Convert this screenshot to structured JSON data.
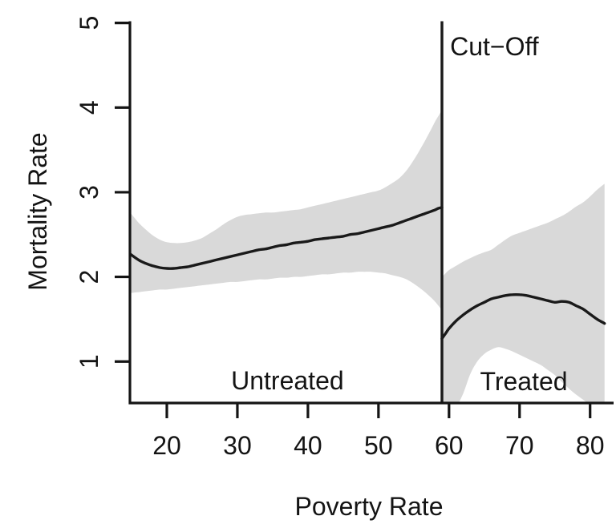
{
  "chart_data": {
    "type": "line",
    "title": "",
    "xlabel": "Poverty Rate",
    "ylabel": "Mortality Rate",
    "xlim": [
      14.77,
      83.33
    ],
    "ylim": [
      0.51,
      5.02
    ],
    "x_ticks": [
      20,
      30,
      40,
      50,
      60,
      70,
      80
    ],
    "y_ticks": [
      1,
      2,
      3,
      4,
      5
    ],
    "grid": false,
    "legend": "none",
    "band_color": "#d9d9d9",
    "line_color": "#1a1a1a",
    "axis_color": "#141414",
    "cutoff": {
      "x": 59,
      "label": "Cut−Off",
      "label_pos": {
        "x": 60.15,
        "y": 4.62
      }
    },
    "region_labels": [
      {
        "text": "Untreated",
        "x": 37.1,
        "y": 0.67
      },
      {
        "text": "Treated",
        "x": 70.6,
        "y": 0.66
      }
    ],
    "series": [
      {
        "name": "Untreated",
        "x": [
          14.8,
          16,
          17,
          18,
          19,
          20,
          21,
          22,
          23,
          24,
          25,
          26,
          27,
          28,
          29,
          30,
          31,
          32,
          33,
          34,
          35,
          36,
          37,
          38,
          39,
          40,
          41,
          42,
          43,
          44,
          45,
          46,
          47,
          48,
          49,
          50,
          51,
          52,
          53,
          54,
          55,
          56,
          57,
          58,
          58.5,
          59
        ],
        "y": [
          2.27,
          2.2,
          2.16,
          2.13,
          2.11,
          2.1,
          2.1,
          2.11,
          2.12,
          2.14,
          2.16,
          2.18,
          2.2,
          2.22,
          2.24,
          2.26,
          2.28,
          2.3,
          2.32,
          2.33,
          2.35,
          2.37,
          2.38,
          2.4,
          2.41,
          2.42,
          2.44,
          2.45,
          2.46,
          2.47,
          2.48,
          2.5,
          2.51,
          2.53,
          2.55,
          2.57,
          2.59,
          2.61,
          2.64,
          2.67,
          2.7,
          2.73,
          2.76,
          2.79,
          2.81,
          2.82
        ],
        "upper": [
          2.76,
          2.64,
          2.56,
          2.49,
          2.44,
          2.41,
          2.4,
          2.4,
          2.41,
          2.43,
          2.46,
          2.51,
          2.56,
          2.62,
          2.67,
          2.71,
          2.73,
          2.74,
          2.75,
          2.76,
          2.76,
          2.77,
          2.78,
          2.79,
          2.8,
          2.82,
          2.84,
          2.86,
          2.88,
          2.9,
          2.92,
          2.94,
          2.96,
          2.98,
          3.0,
          3.02,
          3.06,
          3.11,
          3.17,
          3.26,
          3.38,
          3.52,
          3.67,
          3.83,
          3.9,
          3.97
        ],
        "lower": [
          1.81,
          1.82,
          1.83,
          1.84,
          1.85,
          1.85,
          1.86,
          1.87,
          1.88,
          1.89,
          1.9,
          1.91,
          1.92,
          1.93,
          1.94,
          1.94,
          1.95,
          1.96,
          1.97,
          1.97,
          1.98,
          1.99,
          1.99,
          2.0,
          2.0,
          2.01,
          2.02,
          2.03,
          2.03,
          2.04,
          2.05,
          2.05,
          2.06,
          2.06,
          2.06,
          2.05,
          2.04,
          2.02,
          2.0,
          1.97,
          1.92,
          1.86,
          1.79,
          1.71,
          1.66,
          1.61
        ]
      },
      {
        "name": "Treated",
        "x": [
          59,
          59.5,
          60,
          61,
          62,
          63,
          64,
          65,
          66,
          67,
          68,
          69,
          70,
          71,
          72,
          73,
          74,
          75,
          76,
          77,
          78,
          79,
          80,
          81,
          82.05
        ],
        "y": [
          1.27,
          1.33,
          1.39,
          1.48,
          1.55,
          1.61,
          1.66,
          1.7,
          1.74,
          1.76,
          1.78,
          1.79,
          1.79,
          1.78,
          1.76,
          1.74,
          1.72,
          1.7,
          1.71,
          1.7,
          1.66,
          1.62,
          1.56,
          1.5,
          1.45
        ],
        "upper": [
          2.0,
          2.04,
          2.08,
          2.13,
          2.18,
          2.22,
          2.26,
          2.29,
          2.32,
          2.38,
          2.44,
          2.49,
          2.52,
          2.55,
          2.58,
          2.61,
          2.64,
          2.68,
          2.72,
          2.77,
          2.83,
          2.88,
          2.95,
          3.03,
          3.1
        ],
        "lower": [
          0.3,
          0.33,
          0.37,
          0.46,
          0.62,
          0.85,
          1.0,
          1.09,
          1.14,
          1.17,
          1.15,
          1.12,
          1.08,
          1.04,
          1.0,
          0.96,
          0.9,
          0.84,
          0.76,
          0.68,
          0.61,
          0.55,
          0.49,
          0.45,
          0.42
        ]
      }
    ]
  }
}
